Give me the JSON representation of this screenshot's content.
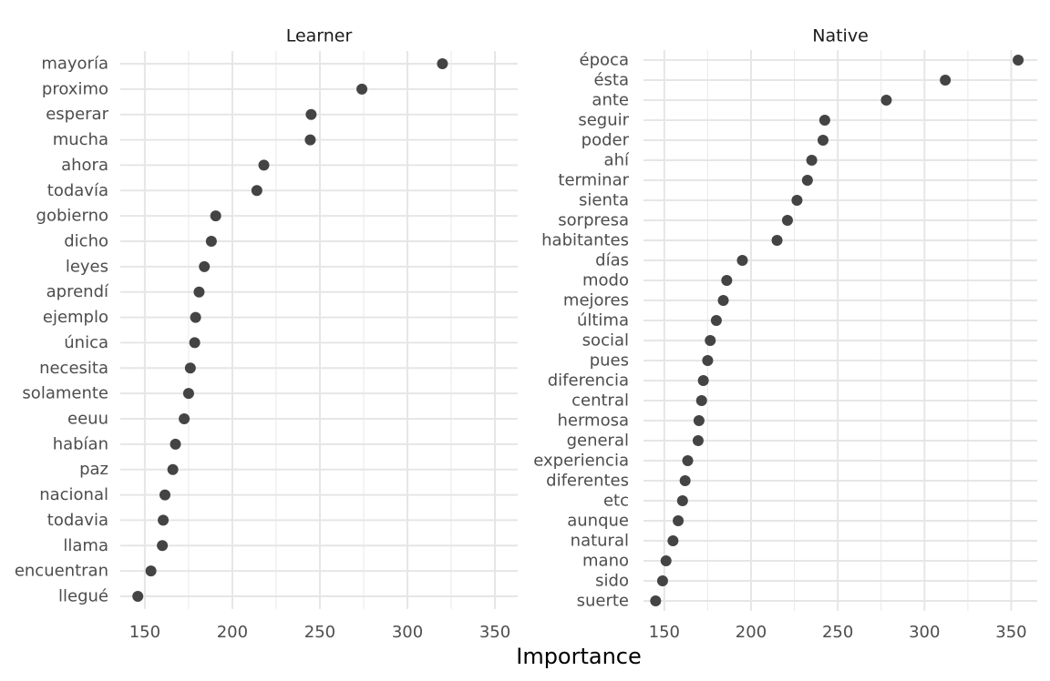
{
  "chart_data": {
    "type": "scatter",
    "xlabel": "Importance",
    "grid": true,
    "panels": [
      {
        "name": "Learner",
        "xlim": [
          136,
          363
        ],
        "xticks": [
          150,
          200,
          250,
          300,
          350
        ],
        "xtick_labels": [
          "150",
          "200",
          "250",
          "300",
          "350"
        ],
        "categories": [
          "mayoría",
          "proximo",
          "esperar",
          "mucha",
          "ahora",
          "todavía",
          "gobierno",
          "dicho",
          "leyes",
          "aprendí",
          "ejemplo",
          "única",
          "necesita",
          "solamente",
          "eeuu",
          "habían",
          "paz",
          "nacional",
          "todavia",
          "llama",
          "encuentran",
          "llegué"
        ],
        "values": [
          320,
          274,
          245,
          244.5,
          218,
          214,
          190.5,
          188,
          184,
          181,
          179,
          178.5,
          176,
          175,
          172.5,
          167.5,
          166,
          161.5,
          160.5,
          160,
          153.5,
          146
        ]
      },
      {
        "name": "Native",
        "xlim": [
          138,
          365
        ],
        "xticks": [
          150,
          200,
          250,
          300,
          350
        ],
        "xtick_labels": [
          "150",
          "200",
          "250",
          "300",
          "350"
        ],
        "categories": [
          "época",
          "ésta",
          "ante",
          "seguir",
          "poder",
          "ahí",
          "terminar",
          "sienta",
          "sorpresa",
          "habitantes",
          "días",
          "modo",
          "mejores",
          "última",
          "social",
          "pues",
          "diferencia",
          "central",
          "hermosa",
          "general",
          "experiencia",
          "diferentes",
          "etc",
          "aunque",
          "natural",
          "mano",
          "sido",
          "suerte"
        ],
        "values": [
          354,
          312,
          278,
          242.5,
          241.5,
          235,
          232.5,
          226.5,
          221,
          215,
          195,
          186,
          184,
          180,
          176.5,
          175,
          172.5,
          171.5,
          170,
          169.5,
          163.5,
          162,
          160.5,
          158,
          155,
          151,
          149,
          145
        ]
      }
    ]
  }
}
